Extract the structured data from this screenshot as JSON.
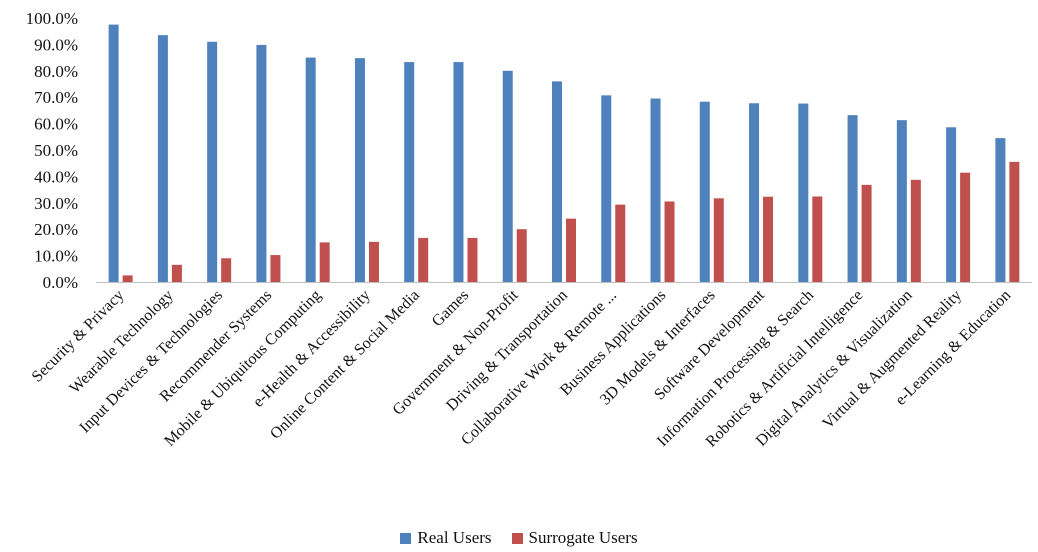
{
  "chart_data": {
    "type": "bar",
    "categories": [
      "Security & Privacy",
      "Wearable Technology",
      "Input Devices & Technologies",
      "Recommender Systems",
      "Mobile & Ubiquitous Computing",
      "e-Health & Accessibility",
      "Online Content & Social Media",
      "Games",
      "Government & Non-Profit",
      "Driving & Transportation",
      "Collaborative Work & Remote ...",
      "Business Applications",
      "3D Models & Interfaces",
      "Software Development",
      "Information Processing & Search",
      "Robotics & Artificial Intelligence",
      "Digital Analytics & Visualization",
      "Virtual & Augmented Reality",
      "e-Learning & Education"
    ],
    "series": [
      {
        "name": "Real Users",
        "color": "#4F81BD",
        "values": [
          97.5,
          93.5,
          91.0,
          89.8,
          85.0,
          84.8,
          83.3,
          83.3,
          80.0,
          76.0,
          70.7,
          69.5,
          68.3,
          67.7,
          67.6,
          63.2,
          61.3,
          58.6,
          54.5
        ]
      },
      {
        "name": "Surrogate Users",
        "color": "#C0504D",
        "values": [
          2.5,
          6.5,
          9.0,
          10.2,
          15.0,
          15.2,
          16.7,
          16.7,
          20.0,
          24.0,
          29.3,
          30.5,
          31.7,
          32.3,
          32.4,
          36.8,
          38.7,
          41.4,
          45.5
        ]
      }
    ],
    "yticks": [
      "0.0%",
      "10.0%",
      "20.0%",
      "30.0%",
      "40.0%",
      "50.0%",
      "60.0%",
      "70.0%",
      "80.0%",
      "90.0%",
      "100.0%"
    ],
    "ylim": [
      0,
      100
    ],
    "grid": false,
    "legend_position": "bottom"
  }
}
